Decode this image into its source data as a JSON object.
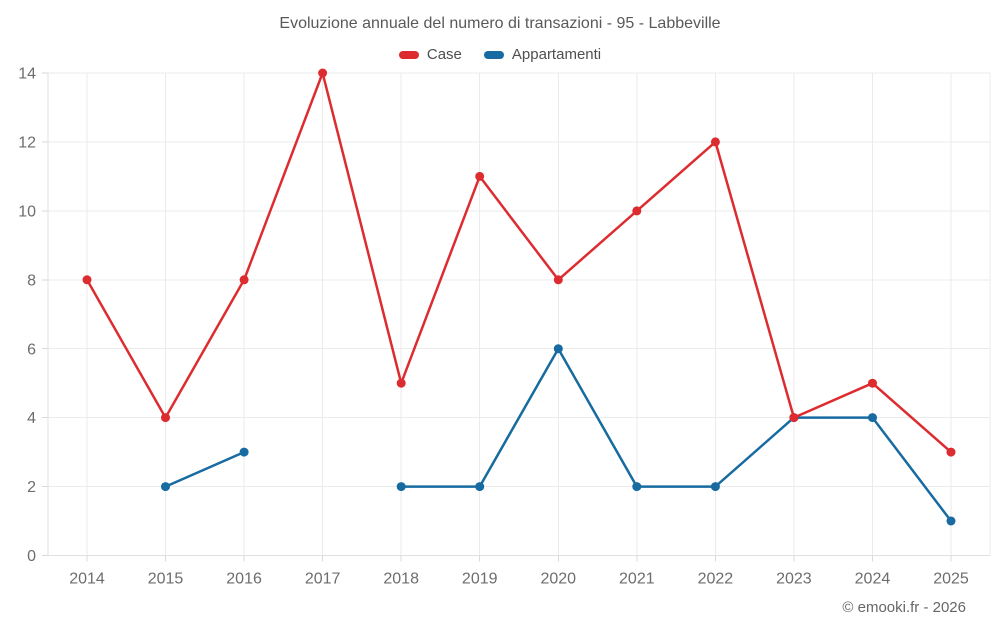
{
  "footer": {
    "credit": "© emooki.fr - 2026"
  },
  "chart_data": {
    "type": "line",
    "title": "Evoluzione annuale del numero di transazioni - 95 - Labbeville",
    "categories": [
      "2014",
      "2015",
      "2016",
      "2017",
      "2018",
      "2019",
      "2020",
      "2021",
      "2022",
      "2023",
      "2024",
      "2025"
    ],
    "series": [
      {
        "name": "Case",
        "color": "#dd2c2f",
        "values": [
          8,
          4,
          8,
          14,
          5,
          11,
          8,
          10,
          12,
          4,
          5,
          3
        ]
      },
      {
        "name": "Appartamenti",
        "color": "#176ba0",
        "values": [
          null,
          2,
          3,
          null,
          2,
          2,
          6,
          2,
          2,
          4,
          4,
          1
        ]
      }
    ],
    "ylim": [
      0,
      14
    ],
    "yticks": [
      0,
      2,
      4,
      6,
      8,
      10,
      12,
      14
    ],
    "grid": true,
    "legend_position": "top",
    "legend_labels": [
      "Case",
      "Appartamenti"
    ]
  }
}
